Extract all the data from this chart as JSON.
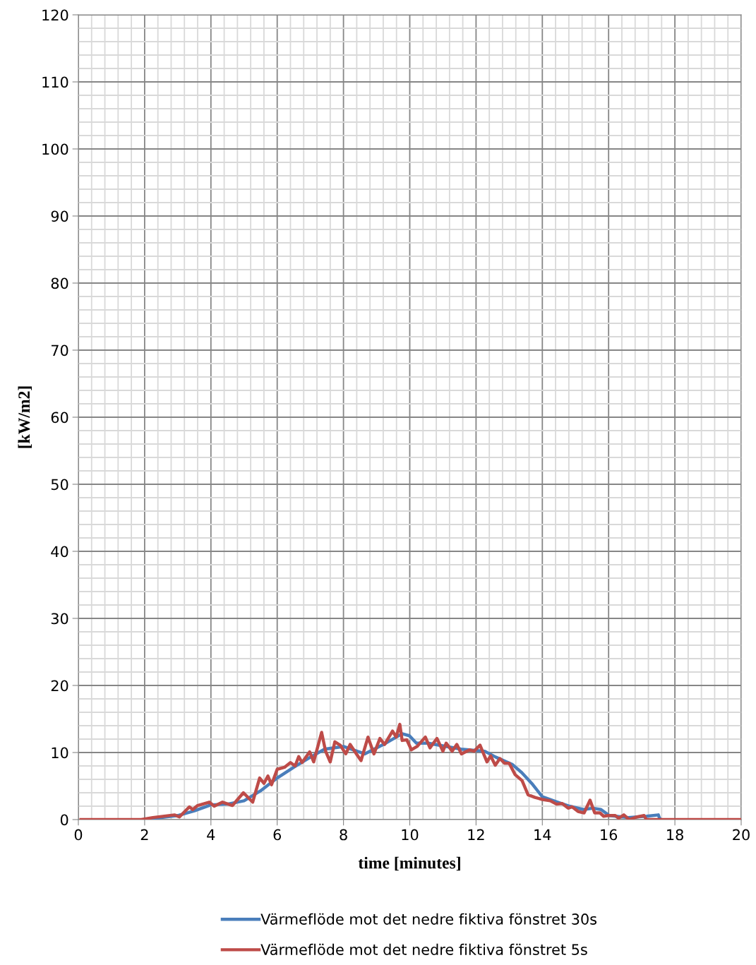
{
  "chart_data": {
    "type": "line",
    "xlabel": "time [minutes]",
    "ylabel": "[kW/m2]",
    "xlim": [
      0,
      20
    ],
    "ylim": [
      0,
      120
    ],
    "xticks": [
      0,
      2,
      4,
      6,
      8,
      10,
      12,
      14,
      16,
      18,
      20
    ],
    "yticks": [
      0,
      10,
      20,
      30,
      40,
      50,
      60,
      70,
      80,
      90,
      100,
      110,
      120
    ],
    "grid": true,
    "legend": "bottom",
    "marker": "none",
    "line_style": "solid",
    "series": [
      {
        "name": "Värmeflöde mot det nedre fiktiva fönstret 30s",
        "color": "#4a7ebb",
        "x": [
          2.0,
          2.5,
          3.0,
          3.5,
          4.0,
          4.5,
          5.0,
          5.5,
          6.0,
          6.5,
          7.0,
          7.43,
          8.0,
          8.64,
          9.28,
          9.77,
          9.99,
          10.2,
          10.55,
          11.55,
          12.26,
          12.6,
          13.1,
          13.38,
          13.68,
          14.0,
          14.46,
          14.82,
          15.24,
          15.52,
          15.77,
          16.02,
          16.59,
          17.15,
          17.5,
          17.53,
          17.57
        ],
        "values": [
          0,
          0.3,
          0.6,
          1.3,
          2.2,
          2.3,
          2.8,
          4.3,
          6.2,
          7.8,
          9.3,
          10.5,
          10.9,
          9.8,
          11.4,
          12.8,
          12.5,
          11.4,
          11.4,
          10.5,
          10.2,
          9.3,
          8.2,
          7.0,
          5.4,
          3.4,
          2.6,
          2.0,
          1.5,
          1.7,
          1.5,
          0.6,
          0.3,
          0.5,
          0.7,
          0.3,
          0
        ]
      },
      {
        "name": "Värmeflöde mot det nedre fiktiva fönstret 5s",
        "color": "#be4b48",
        "x": [
          0.08,
          1.9,
          2.25,
          2.9,
          3.05,
          3.35,
          3.45,
          3.6,
          3.95,
          4.1,
          4.35,
          4.65,
          4.98,
          5.26,
          5.47,
          5.6,
          5.72,
          5.83,
          6.0,
          6.22,
          6.4,
          6.54,
          6.65,
          6.75,
          6.98,
          7.1,
          7.34,
          7.46,
          7.6,
          7.74,
          7.9,
          8.07,
          8.2,
          8.39,
          8.53,
          8.74,
          8.92,
          9.1,
          9.24,
          9.48,
          9.59,
          9.7,
          9.77,
          9.91,
          10.05,
          10.22,
          10.47,
          10.61,
          10.82,
          11.0,
          11.1,
          11.28,
          11.42,
          11.56,
          11.8,
          11.94,
          12.12,
          12.33,
          12.44,
          12.58,
          12.72,
          12.86,
          13.0,
          13.18,
          13.39,
          13.57,
          13.78,
          14.0,
          14.24,
          14.43,
          14.6,
          14.78,
          14.9,
          15.08,
          15.26,
          15.44,
          15.58,
          15.74,
          15.85,
          15.99,
          16.2,
          16.3,
          16.46,
          16.62,
          16.86,
          17.07,
          17.14,
          20.0
        ],
        "values": [
          0,
          0,
          0.3,
          0.7,
          0.4,
          1.9,
          1.5,
          2.1,
          2.6,
          2.0,
          2.6,
          2.1,
          4.0,
          2.6,
          6.2,
          5.4,
          6.5,
          5.2,
          7.5,
          7.8,
          8.5,
          8.0,
          9.4,
          8.5,
          10.1,
          8.6,
          13.0,
          10.2,
          8.6,
          11.6,
          11.1,
          9.8,
          11.2,
          9.8,
          8.8,
          12.3,
          9.8,
          12.1,
          11.2,
          13.2,
          12.3,
          14.2,
          11.8,
          11.9,
          10.4,
          10.9,
          12.3,
          10.7,
          12.1,
          10.2,
          11.4,
          10.2,
          11.2,
          9.8,
          10.4,
          10.2,
          11.1,
          8.6,
          9.5,
          8.1,
          9.1,
          8.4,
          8.4,
          6.7,
          5.8,
          3.7,
          3.3,
          3.0,
          2.8,
          2.3,
          2.4,
          1.7,
          1.9,
          1.2,
          1.0,
          2.9,
          1.0,
          1.0,
          0.5,
          0.6,
          0.6,
          0.2,
          0.7,
          0,
          0.4,
          0.6,
          0,
          0
        ]
      }
    ]
  }
}
